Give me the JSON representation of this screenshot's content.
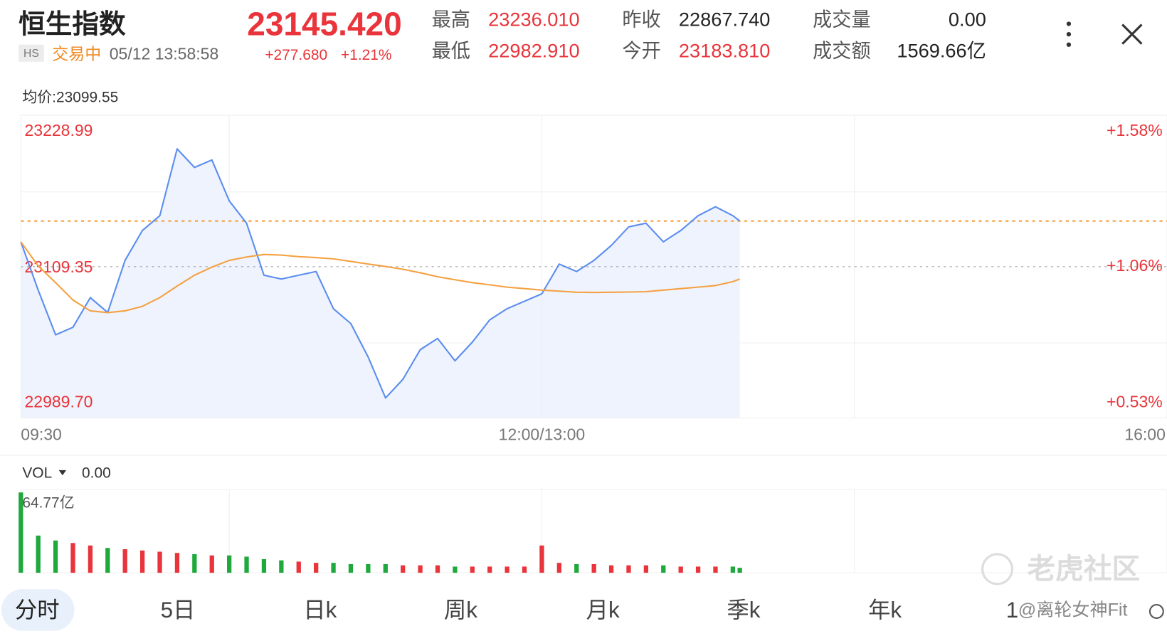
{
  "header": {
    "title": "恒生指数",
    "badge": "HS",
    "status": "交易中",
    "time": "05/12 13:58:58",
    "price": "23145.420",
    "change": "+277.680",
    "change_pct": "+1.21%",
    "stats": [
      {
        "label": "最高",
        "value": "23236.010",
        "color": "#e8343a"
      },
      {
        "label": "最低",
        "value": "22982.910",
        "color": "#e8343a"
      },
      {
        "label": "昨收",
        "value": "22867.740",
        "color": "#222222"
      },
      {
        "label": "今开",
        "value": "23183.810",
        "color": "#e8343a"
      },
      {
        "label": "成交量",
        "value": "0.00",
        "color": "#222222"
      },
      {
        "label": "成交额",
        "value": "1569.66亿",
        "color": "#222222"
      }
    ]
  },
  "chart_data": {
    "type": "line",
    "avg_label": "均价:23099.55",
    "x": [
      0,
      5,
      10,
      15,
      20,
      25,
      30,
      35,
      40,
      45,
      50,
      55,
      60,
      65,
      70,
      75,
      80,
      85,
      90,
      95,
      100,
      105,
      110,
      115,
      120,
      125,
      130,
      135,
      140,
      145,
      150,
      155,
      160,
      165,
      170,
      175,
      180,
      185,
      190,
      195,
      200,
      205,
      207
    ],
    "xlim": [
      0,
      330
    ],
    "xticks": [
      {
        "value": 0,
        "label": "09:30"
      },
      {
        "value": 150,
        "label": "12:00/13:00"
      },
      {
        "value": 330,
        "label": "16:00"
      }
    ],
    "ylim": [
      22989.7,
      23228.99
    ],
    "yticks": [
      {
        "value": 22989.7,
        "label": "22989.70"
      },
      23109.35,
      23228.99
    ],
    "y2lim": [
      0.53,
      1.58
    ],
    "y2ticks": [
      {
        "value": 0.53,
        "label": "+0.53%"
      },
      {
        "value": 1.06,
        "label": "+1.06%"
      },
      {
        "value": 1.58,
        "label": "+1.58%"
      }
    ],
    "series": [
      {
        "color": "#5b8def",
        "fill": "#eef3fd",
        "values": [
          23129.0,
          23090.8,
          23055.5,
          23061.4,
          23084.9,
          23073.2,
          23114.3,
          23137.9,
          23149.6,
          23202.5,
          23187.8,
          23193.7,
          23161.4,
          23143.7,
          23102.6,
          23099.6,
          23102.6,
          23105.5,
          23076.1,
          23064.4,
          23037.9,
          23005.6,
          23020.3,
          23043.8,
          23052.6,
          23035.0,
          23049.7,
          23067.3,
          23076.1,
          23082.0,
          23087.9,
          23111.4,
          23105.5,
          23114.3,
          23126.1,
          23140.8,
          23143.7,
          23129.0,
          23137.9,
          23149.6,
          23156.7,
          23149.6,
          23145.4
        ]
      },
      {
        "color": "#f5a142",
        "values": [
          23129.0,
          23110.0,
          23096.7,
          23083.0,
          23074.4,
          23073.0,
          23074.4,
          23078.0,
          23084.9,
          23094.0,
          23102.6,
          23109.0,
          23114.3,
          23117.0,
          23119.0,
          23118.5,
          23117.3,
          23116.5,
          23115.5,
          23113.5,
          23111.4,
          23109.5,
          23107.3,
          23104.5,
          23101.4,
          23099.0,
          23096.7,
          23095.0,
          23093.2,
          23092.0,
          23090.8,
          23090.0,
          23089.1,
          23089.0,
          23089.1,
          23089.3,
          23089.6,
          23090.8,
          23092.0,
          23093.2,
          23094.4,
          23097.5,
          23099.6
        ]
      }
    ],
    "volume": {
      "label": "VOL",
      "value_text": "0.00",
      "ylim": [
        0,
        64.77
      ],
      "yticks": [
        {
          "value": 64.77,
          "label": "64.77亿"
        }
      ],
      "up_color": "#e8343a",
      "down_color": "#1fa83c",
      "values": [
        64.77,
        30,
        26,
        24,
        22,
        20,
        19,
        18,
        17,
        16,
        15,
        14,
        14,
        13,
        11,
        10,
        9,
        8,
        8,
        7,
        7,
        7,
        6,
        6,
        6,
        5,
        5,
        5,
        5,
        5,
        22,
        8,
        7,
        7,
        6,
        6,
        6,
        6,
        5,
        5,
        5,
        5,
        4
      ]
    }
  },
  "tabs": {
    "items": [
      "分时",
      "5日",
      "日k",
      "周k",
      "月k",
      "季k",
      "年k",
      "1"
    ],
    "active": 0
  },
  "watermark": {
    "brand": "老虎社区",
    "author": "@离轮女神Fit"
  }
}
